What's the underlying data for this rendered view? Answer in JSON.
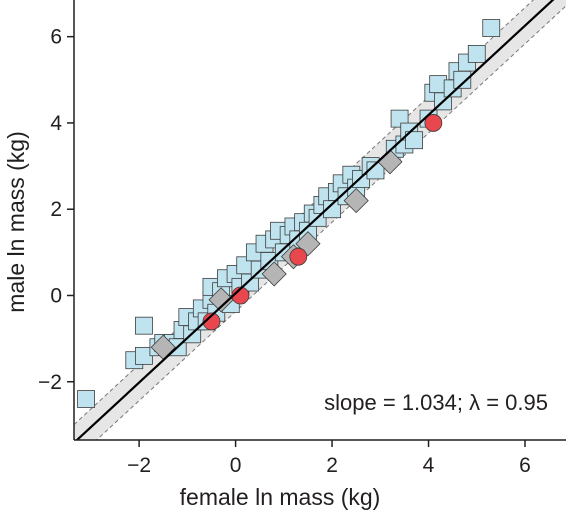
{
  "chart_data": {
    "type": "scatter",
    "xlabel": "female ln mass (kg)",
    "ylabel": "male ln mass (kg)",
    "xlim": [
      -3.35,
      6.85
    ],
    "ylim": [
      -3.35,
      6.85
    ],
    "xticks": [
      -2,
      0,
      2,
      4,
      6
    ],
    "yticks": [
      -2,
      0,
      2,
      4,
      6
    ],
    "x_tick_labels": [
      "−2",
      "0",
      "2",
      "4",
      "6"
    ],
    "y_tick_labels": [
      "−2",
      "0",
      "2",
      "4",
      "6"
    ],
    "annotation": "slope = 1.034; λ = 0.95",
    "grid": false,
    "colors": {
      "squares": "#bfe4ef",
      "gray_squares": "#b5b5b5",
      "circles": "#e8474d",
      "marker_edge": "#3d3d3d",
      "fit_line": "#000000",
      "band": "#e6e6e6",
      "band_edge": "#777777"
    },
    "fit_line": {
      "slope": 1.034,
      "intercept": 0.05
    },
    "band_halfwidth": 0.42,
    "series": [
      {
        "marker": "square",
        "points": [
          [
            -3.1,
            -2.4
          ],
          [
            -2.1,
            -1.5
          ],
          [
            -1.9,
            -1.4
          ],
          [
            -1.9,
            -0.7
          ],
          [
            -1.6,
            -1.2
          ],
          [
            -1.5,
            -1.1
          ],
          [
            -1.3,
            -1.1
          ],
          [
            -1.2,
            -1.2
          ],
          [
            -1.1,
            -0.8
          ],
          [
            -1.0,
            -0.5
          ],
          [
            -0.9,
            -0.9
          ],
          [
            -0.8,
            -0.6
          ],
          [
            -0.7,
            -0.3
          ],
          [
            -0.6,
            -0.6
          ],
          [
            -0.5,
            -0.1
          ],
          [
            -0.5,
            0.2
          ],
          [
            -0.4,
            -0.4
          ],
          [
            -0.3,
            0.1
          ],
          [
            -0.2,
            0.4
          ],
          [
            -0.1,
            -0.2
          ],
          [
            0.0,
            0.5
          ],
          [
            0.1,
            0.2
          ],
          [
            0.2,
            0.7
          ],
          [
            0.3,
            0.3
          ],
          [
            0.4,
            1.0
          ],
          [
            0.5,
            0.6
          ],
          [
            0.6,
            1.2
          ],
          [
            0.7,
            0.8
          ],
          [
            0.8,
            1.3
          ],
          [
            0.9,
            1.5
          ],
          [
            1.0,
            1.0
          ],
          [
            1.1,
            1.4
          ],
          [
            1.2,
            1.6
          ],
          [
            1.3,
            1.3
          ],
          [
            1.4,
            1.7
          ],
          [
            1.5,
            1.5
          ],
          [
            1.6,
            1.9
          ],
          [
            1.7,
            1.8
          ],
          [
            1.8,
            2.1
          ],
          [
            1.9,
            2.3
          ],
          [
            2.0,
            2.0
          ],
          [
            2.1,
            2.4
          ],
          [
            2.2,
            2.6
          ],
          [
            2.3,
            2.3
          ],
          [
            2.4,
            2.8
          ],
          [
            2.5,
            2.5
          ],
          [
            2.6,
            2.7
          ],
          [
            2.8,
            3.0
          ],
          [
            2.9,
            2.9
          ],
          [
            3.3,
            3.4
          ],
          [
            3.4,
            4.1
          ],
          [
            3.5,
            3.5
          ],
          [
            3.6,
            3.8
          ],
          [
            3.7,
            3.6
          ],
          [
            4.0,
            4.1
          ],
          [
            4.1,
            4.7
          ],
          [
            4.2,
            4.9
          ],
          [
            4.3,
            4.5
          ],
          [
            4.5,
            4.8
          ],
          [
            4.6,
            5.2
          ],
          [
            4.7,
            5.0
          ],
          [
            4.8,
            5.4
          ],
          [
            5.0,
            5.6
          ],
          [
            5.3,
            6.2
          ]
        ]
      },
      {
        "marker": "square-gray",
        "points": [
          [
            -1.5,
            -1.2
          ],
          [
            -0.3,
            -0.1
          ],
          [
            0.8,
            0.5
          ],
          [
            1.2,
            0.9
          ],
          [
            1.5,
            1.2
          ],
          [
            2.5,
            2.2
          ],
          [
            3.2,
            3.1
          ]
        ]
      },
      {
        "marker": "circle",
        "points": [
          [
            -0.5,
            -0.6
          ],
          [
            0.1,
            0.0
          ],
          [
            1.3,
            0.9
          ],
          [
            4.1,
            4.0
          ]
        ]
      }
    ]
  }
}
